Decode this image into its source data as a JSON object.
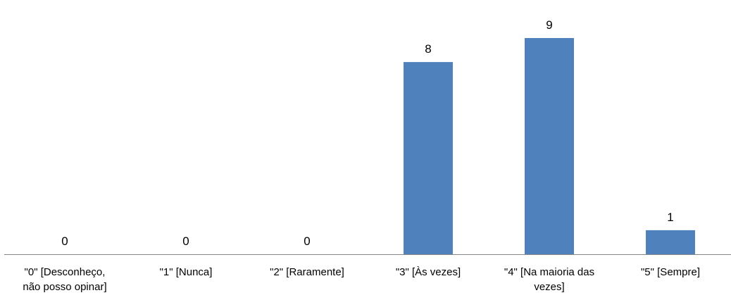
{
  "colors": {
    "bar": "#4F81BD",
    "axis": "#868686"
  },
  "chart_data": {
    "type": "bar",
    "categories": [
      "\"0\" [Desconheço,\nnão posso opinar]",
      "\"1\" [Nunca]",
      "\"2\" [Raramente]",
      "\"3\" [Às vezes]",
      "\"4\" [Na maioria das\nvezes]",
      "\"5\" [Sempre]"
    ],
    "values": [
      0,
      0,
      0,
      8,
      9,
      1
    ],
    "data_labels": [
      "0",
      "0",
      "0",
      "8",
      "9",
      "1"
    ],
    "ylim": [
      0,
      9
    ],
    "grid": false,
    "legend": "none"
  }
}
